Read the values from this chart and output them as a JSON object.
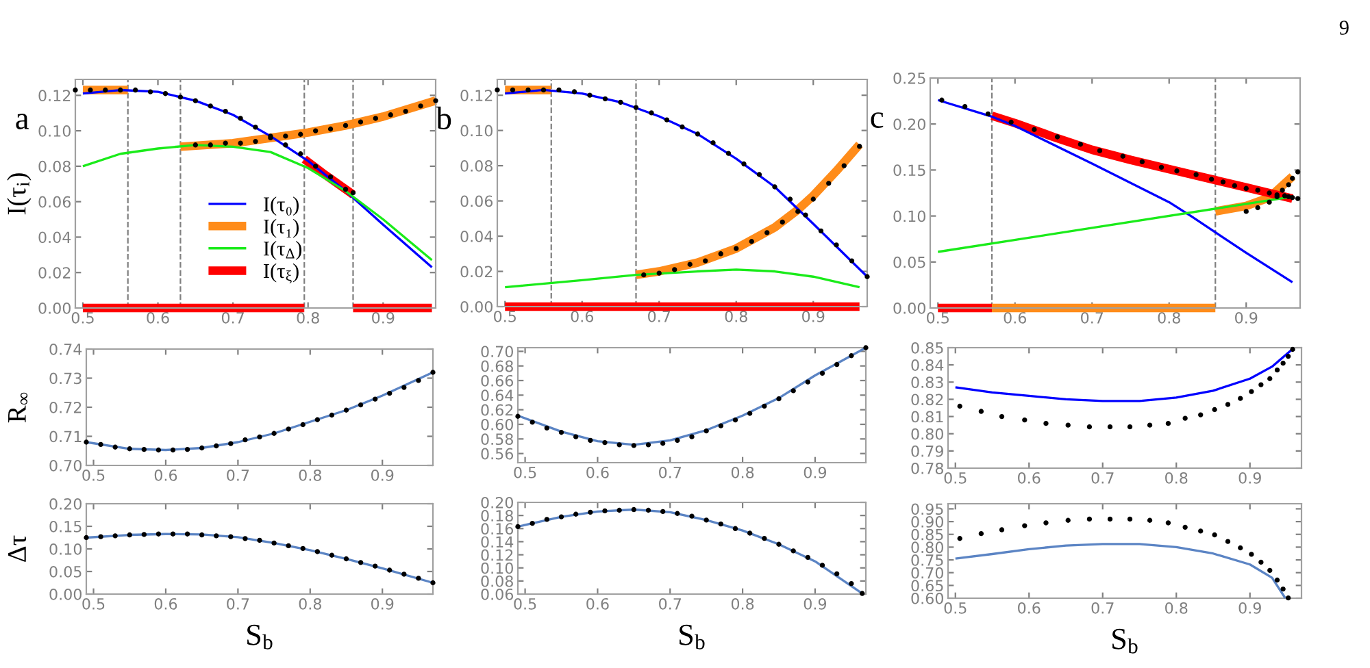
{
  "chart_data": [
    {
      "type": "line",
      "title": "a",
      "ylabel": "I(τ$_{i}$)",
      "legend": "bottom",
      "xlim": [
        0.49,
        0.97
      ],
      "xticks": [
        0.5,
        0.6,
        0.7,
        0.8,
        0.9
      ],
      "ylim": [
        0,
        0.129
      ],
      "yticks": [
        {
          "value": 0,
          "label": "0.00"
        },
        {
          "value": 0.02,
          "label": "0.02"
        },
        {
          "value": 0.04,
          "label": "0.04"
        },
        {
          "value": 0.06,
          "label": "0.06"
        },
        {
          "value": 0.08,
          "label": "0.08"
        },
        {
          "value": 0.1,
          "label": "0.10"
        },
        {
          "value": 0.12,
          "label": "0.12"
        }
      ],
      "ref_lines": [
        {
          "axis": "x",
          "value": 0.56,
          "color": "#808080",
          "line_style": "dashed"
        },
        {
          "axis": "x",
          "value": 0.63,
          "color": "#808080",
          "line_style": "dashed"
        },
        {
          "axis": "x",
          "value": 0.795,
          "color": "#808080",
          "line_style": "dashed"
        },
        {
          "axis": "x",
          "value": 0.86,
          "color": "#808080",
          "line_style": "dashed"
        }
      ],
      "series": [
        {
          "name": "I(τ₀)",
          "color": "#0000ff",
          "x": [
            0.5,
            0.55,
            0.6,
            0.65,
            0.7,
            0.75,
            0.8,
            0.85,
            0.9,
            0.965
          ],
          "values": [
            0.121,
            0.123,
            0.122,
            0.117,
            0.109,
            0.097,
            0.083,
            0.066,
            0.047,
            0.023
          ]
        },
        {
          "name": "I(τ₁)",
          "color": "#ff8c1a",
          "x": [
            0.63,
            0.7,
            0.75,
            0.8,
            0.85,
            0.9,
            0.97
          ],
          "values": [
            0.091,
            0.093,
            0.096,
            0.099,
            0.103,
            0.108,
            0.117
          ]
        },
        {
          "name": "I(τ$_{Δ}$)",
          "color": "#1aeb1a",
          "x": [
            0.5,
            0.55,
            0.6,
            0.65,
            0.7,
            0.75,
            0.8,
            0.85,
            0.9,
            0.965
          ],
          "values": [
            0.08,
            0.087,
            0.09,
            0.092,
            0.091,
            0.088,
            0.079,
            0.066,
            0.05,
            0.027
          ]
        },
        {
          "name": "I(τ$_{ξ}$)",
          "color": "#ff0000",
          "x": [
            0.795,
            0.82,
            0.86
          ],
          "values": [
            0.084,
            0.076,
            0.064
          ]
        },
        {
          "color": "#ff8c1a",
          "x": [
            0.5,
            0.56
          ],
          "values": [
            0.123,
            0.123
          ]
        },
        {
          "color": "#ff0000",
          "x": [
            0.5,
            0.795
          ],
          "values": [
            0,
            0
          ]
        },
        {
          "color": "#ff0000",
          "x": [
            0.86,
            0.965
          ],
          "values": [
            0,
            0
          ]
        },
        {
          "type": "scatter",
          "marker": "circle",
          "color": "#000000",
          "x": [
            0.49,
            0.51,
            0.53,
            0.55,
            0.57,
            0.59,
            0.61,
            0.63,
            0.65,
            0.67,
            0.69,
            0.71,
            0.73,
            0.75,
            0.77,
            0.79,
            0.81,
            0.83,
            0.85,
            0.86,
            0.65,
            0.67,
            0.69,
            0.71,
            0.73,
            0.75,
            0.77,
            0.79,
            0.81,
            0.83,
            0.85,
            0.87,
            0.89,
            0.91,
            0.93,
            0.95,
            0.97
          ],
          "values": [
            0.123,
            0.123,
            0.123,
            0.123,
            0.123,
            0.122,
            0.121,
            0.119,
            0.117,
            0.114,
            0.111,
            0.107,
            0.102,
            0.097,
            0.092,
            0.087,
            0.08,
            0.074,
            0.067,
            0.065,
            0.092,
            0.092,
            0.093,
            0.093,
            0.094,
            0.096,
            0.097,
            0.098,
            0.1,
            0.101,
            0.103,
            0.105,
            0.107,
            0.109,
            0.111,
            0.114,
            0.117
          ]
        }
      ]
    },
    {
      "type": "line",
      "title": "b",
      "xlim": [
        0.49,
        0.97
      ],
      "xticks": [
        0.5,
        0.6,
        0.7,
        0.8,
        0.9
      ],
      "ylim": [
        0,
        0.129
      ],
      "yticks": [
        {
          "value": 0,
          "label": "0.00"
        },
        {
          "value": 0.02,
          "label": "0.02"
        },
        {
          "value": 0.04,
          "label": "0.04"
        },
        {
          "value": 0.06,
          "label": "0.06"
        },
        {
          "value": 0.08,
          "label": "0.08"
        },
        {
          "value": 0.1,
          "label": "0.10"
        },
        {
          "value": 0.12,
          "label": "0.12"
        }
      ],
      "ref_lines": [
        {
          "axis": "x",
          "value": 0.56,
          "color": "#808080",
          "line_style": "dashed"
        },
        {
          "axis": "x",
          "value": 0.67,
          "color": "#808080",
          "line_style": "dashed"
        }
      ],
      "series": [
        {
          "color": "#0000ff",
          "x": [
            0.5,
            0.55,
            0.6,
            0.65,
            0.7,
            0.75,
            0.8,
            0.85,
            0.9,
            0.97
          ],
          "values": [
            0.121,
            0.123,
            0.121,
            0.116,
            0.108,
            0.098,
            0.084,
            0.068,
            0.047,
            0.017
          ]
        },
        {
          "color": "#ff8c1a",
          "x": [
            0.67,
            0.7,
            0.75,
            0.8,
            0.85,
            0.88,
            0.9,
            0.93,
            0.96
          ],
          "values": [
            0.018,
            0.02,
            0.025,
            0.033,
            0.045,
            0.055,
            0.063,
            0.077,
            0.092
          ]
        },
        {
          "color": "#1aeb1a",
          "x": [
            0.5,
            0.6,
            0.67,
            0.75,
            0.8,
            0.85,
            0.9,
            0.96
          ],
          "values": [
            0.011,
            0.015,
            0.018,
            0.02,
            0.021,
            0.02,
            0.017,
            0.011
          ]
        },
        {
          "color": "#ff0000",
          "x": [
            0.5,
            0.96
          ],
          "values": [
            0,
            0
          ]
        },
        {
          "color": "#ff8c1a",
          "x": [
            0.5,
            0.56
          ],
          "values": [
            0.123,
            0.123
          ]
        },
        {
          "type": "scatter",
          "marker": "circle",
          "color": "#000000",
          "x": [
            0.49,
            0.51,
            0.53,
            0.55,
            0.57,
            0.59,
            0.61,
            0.63,
            0.65,
            0.67,
            0.69,
            0.71,
            0.73,
            0.75,
            0.77,
            0.79,
            0.81,
            0.83,
            0.85,
            0.87,
            0.89,
            0.91,
            0.93,
            0.95,
            0.97,
            0.68,
            0.7,
            0.72,
            0.74,
            0.76,
            0.78,
            0.8,
            0.82,
            0.84,
            0.86,
            0.88,
            0.9,
            0.92,
            0.94,
            0.96
          ],
          "values": [
            0.123,
            0.123,
            0.123,
            0.123,
            0.123,
            0.122,
            0.12,
            0.118,
            0.116,
            0.113,
            0.11,
            0.106,
            0.102,
            0.098,
            0.093,
            0.087,
            0.081,
            0.075,
            0.068,
            0.061,
            0.052,
            0.043,
            0.035,
            0.026,
            0.017,
            0.018,
            0.019,
            0.021,
            0.024,
            0.026,
            0.03,
            0.033,
            0.037,
            0.042,
            0.048,
            0.054,
            0.061,
            0.07,
            0.08,
            0.091
          ]
        }
      ]
    },
    {
      "type": "line",
      "title": "c",
      "annotations": [
        "9"
      ],
      "xlim": [
        0.49,
        0.97
      ],
      "xticks": [
        0.5,
        0.6,
        0.7,
        0.8,
        0.9
      ],
      "ylim": [
        0,
        0.25
      ],
      "yticks": [
        {
          "value": 0,
          "label": "0.00"
        },
        {
          "value": 0.05,
          "label": "0.05"
        },
        {
          "value": 0.1,
          "label": "0.10"
        },
        {
          "value": 0.15,
          "label": "0.15"
        },
        {
          "value": 0.2,
          "label": "0.20"
        },
        {
          "value": 0.25,
          "label": "0.25"
        }
      ],
      "ref_lines": [
        {
          "axis": "x",
          "value": 0.57,
          "color": "#808080",
          "line_style": "dashed"
        },
        {
          "axis": "x",
          "value": 0.86,
          "color": "#808080",
          "line_style": "dashed"
        }
      ],
      "series": [
        {
          "color": "#0000ff",
          "x": [
            0.5,
            0.57,
            0.6,
            0.7,
            0.8,
            0.83,
            0.9,
            0.96
          ],
          "values": [
            0.226,
            0.208,
            0.198,
            0.157,
            0.115,
            0.099,
            0.06,
            0.028
          ]
        },
        {
          "color": "#ff8c1a",
          "x": [
            0.86,
            0.9,
            0.93,
            0.96
          ],
          "values": [
            0.105,
            0.111,
            0.12,
            0.143
          ]
        },
        {
          "color": "#1aeb1a",
          "x": [
            0.5,
            0.96
          ],
          "values": [
            0.061,
            0.121
          ]
        },
        {
          "color": "#ff0000",
          "x": [
            0.57,
            0.6,
            0.65,
            0.7,
            0.75,
            0.8,
            0.86,
            0.9,
            0.93,
            0.96
          ],
          "values": [
            0.209,
            0.201,
            0.186,
            0.172,
            0.161,
            0.151,
            0.139,
            0.131,
            0.125,
            0.119
          ]
        },
        {
          "color": "#ff0000",
          "x": [
            0.5,
            0.57
          ],
          "values": [
            0,
            0
          ]
        },
        {
          "color": "#ff8c1a",
          "x": [
            0.57,
            0.86
          ],
          "values": [
            0,
            0
          ]
        },
        {
          "type": "scatter",
          "marker": "circle",
          "color": "#000000",
          "x": [
            0.505,
            0.535,
            0.565,
            0.595,
            0.625,
            0.655,
            0.685,
            0.71,
            0.74,
            0.765,
            0.79,
            0.81,
            0.835,
            0.855,
            0.87,
            0.885,
            0.9,
            0.915,
            0.93,
            0.94,
            0.95,
            0.955,
            0.96,
            0.967,
            0.9,
            0.915,
            0.93,
            0.94,
            0.947,
            0.955,
            0.96,
            0.967
          ],
          "values": [
            0.226,
            0.219,
            0.211,
            0.202,
            0.194,
            0.186,
            0.178,
            0.171,
            0.165,
            0.159,
            0.153,
            0.149,
            0.145,
            0.14,
            0.137,
            0.133,
            0.13,
            0.128,
            0.125,
            0.123,
            0.122,
            0.121,
            0.12,
            0.119,
            0.105,
            0.109,
            0.115,
            0.121,
            0.128,
            0.134,
            0.141,
            0.148
          ]
        }
      ]
    },
    {
      "type": "line",
      "ylabel": "R$_{∞}$",
      "xlim": [
        0.49,
        0.97
      ],
      "xticks": [
        0.5,
        0.6,
        0.7,
        0.8,
        0.9
      ],
      "ylim": [
        0.7,
        0.74
      ],
      "yticks": [
        {
          "value": 0.7,
          "label": "0.70"
        },
        {
          "value": 0.71,
          "label": "0.71"
        },
        {
          "value": 0.72,
          "label": "0.72"
        },
        {
          "value": 0.73,
          "label": "0.73"
        },
        {
          "value": 0.74,
          "label": "0.74"
        }
      ],
      "series": [
        {
          "color": "#5b84c4",
          "x": [
            0.49,
            0.55,
            0.6,
            0.65,
            0.7,
            0.75,
            0.8,
            0.85,
            0.9,
            0.97
          ],
          "values": [
            0.708,
            0.7057,
            0.7053,
            0.706,
            0.708,
            0.711,
            0.715,
            0.719,
            0.724,
            0.732
          ]
        },
        {
          "type": "scatter",
          "marker": "circle",
          "color": "#000000",
          "x": [
            0.49,
            0.51,
            0.53,
            0.55,
            0.57,
            0.59,
            0.61,
            0.63,
            0.65,
            0.67,
            0.69,
            0.71,
            0.73,
            0.75,
            0.77,
            0.79,
            0.81,
            0.83,
            0.85,
            0.87,
            0.89,
            0.91,
            0.93,
            0.95,
            0.97
          ],
          "values": [
            0.708,
            0.7072,
            0.7063,
            0.7057,
            0.7055,
            0.7053,
            0.7053,
            0.7055,
            0.706,
            0.7067,
            0.7075,
            0.7088,
            0.7098,
            0.711,
            0.7125,
            0.714,
            0.7157,
            0.7173,
            0.719,
            0.7208,
            0.7228,
            0.7248,
            0.7268,
            0.7292,
            0.732
          ]
        }
      ]
    },
    {
      "type": "line",
      "xlim": [
        0.49,
        0.97
      ],
      "xticks": [
        0.5,
        0.6,
        0.7,
        0.8,
        0.9
      ],
      "ylim": [
        0.5475,
        0.705
      ],
      "yticks": [
        {
          "value": 0.56,
          "label": "0.56"
        },
        {
          "value": 0.58,
          "label": "0.58"
        },
        {
          "value": 0.6,
          "label": "0.60"
        },
        {
          "value": 0.62,
          "label": "0.62"
        },
        {
          "value": 0.64,
          "label": "0.64"
        },
        {
          "value": 0.66,
          "label": "0.66"
        },
        {
          "value": 0.68,
          "label": "0.68"
        },
        {
          "value": 0.7,
          "label": "0.70"
        }
      ],
      "series": [
        {
          "color": "#5b84c4",
          "x": [
            0.49,
            0.55,
            0.6,
            0.65,
            0.7,
            0.75,
            0.8,
            0.85,
            0.9,
            0.97
          ],
          "values": [
            0.612,
            0.59,
            0.577,
            0.572,
            0.578,
            0.592,
            0.612,
            0.636,
            0.667,
            0.705
          ]
        },
        {
          "type": "scatter",
          "marker": "circle",
          "color": "#000000",
          "x": [
            0.49,
            0.51,
            0.53,
            0.55,
            0.57,
            0.59,
            0.61,
            0.63,
            0.65,
            0.67,
            0.69,
            0.71,
            0.73,
            0.75,
            0.77,
            0.79,
            0.81,
            0.83,
            0.85,
            0.87,
            0.89,
            0.91,
            0.93,
            0.95,
            0.97
          ],
          "values": [
            0.611,
            0.603,
            0.595,
            0.589,
            0.583,
            0.578,
            0.575,
            0.572,
            0.571,
            0.572,
            0.574,
            0.578,
            0.583,
            0.591,
            0.598,
            0.606,
            0.615,
            0.625,
            0.635,
            0.646,
            0.658,
            0.67,
            0.682,
            0.694,
            0.705
          ]
        }
      ]
    },
    {
      "type": "line",
      "xlim": [
        0.49,
        0.97
      ],
      "xticks": [
        0.5,
        0.6,
        0.7,
        0.8,
        0.9
      ],
      "ylim": [
        0.78,
        0.85
      ],
      "yticks": [
        {
          "value": 0.78,
          "label": "0.78"
        },
        {
          "value": 0.79,
          "label": "0.79"
        },
        {
          "value": 0.8,
          "label": "0.80"
        },
        {
          "value": 0.81,
          "label": "0.81"
        },
        {
          "value": 0.82,
          "label": "0.82"
        },
        {
          "value": 0.83,
          "label": "0.83"
        },
        {
          "value": 0.84,
          "label": "0.84"
        },
        {
          "value": 0.85,
          "label": "0.85"
        }
      ],
      "series": [
        {
          "color": "#0000ff",
          "x": [
            0.5,
            0.55,
            0.6,
            0.65,
            0.7,
            0.75,
            0.8,
            0.85,
            0.9,
            0.93,
            0.96
          ],
          "values": [
            0.827,
            0.824,
            0.822,
            0.82,
            0.819,
            0.819,
            0.821,
            0.825,
            0.832,
            0.839,
            0.85
          ]
        },
        {
          "type": "scatter",
          "marker": "circle",
          "color": "#000000",
          "x": [
            0.506,
            0.535,
            0.563,
            0.594,
            0.623,
            0.653,
            0.682,
            0.71,
            0.737,
            0.764,
            0.789,
            0.812,
            0.833,
            0.852,
            0.87,
            0.887,
            0.902,
            0.915,
            0.927,
            0.937,
            0.945,
            0.952,
            0.958
          ],
          "values": [
            0.816,
            0.813,
            0.81,
            0.808,
            0.806,
            0.805,
            0.804,
            0.804,
            0.804,
            0.805,
            0.806,
            0.809,
            0.811,
            0.814,
            0.817,
            0.8205,
            0.8245,
            0.8285,
            0.832,
            0.837,
            0.841,
            0.845,
            0.849
          ]
        }
      ]
    },
    {
      "type": "line",
      "ylabel": "Δτ",
      "xlabel": "S$_{b}$",
      "xlim": [
        0.49,
        0.97
      ],
      "xticks": [
        0.5,
        0.6,
        0.7,
        0.8,
        0.9
      ],
      "ylim": [
        0,
        0.2
      ],
      "yticks": [
        {
          "value": 0,
          "label": "0.00"
        },
        {
          "value": 0.05,
          "label": "0.05"
        },
        {
          "value": 0.1,
          "label": "0.10"
        },
        {
          "value": 0.15,
          "label": "0.15"
        },
        {
          "value": 0.2,
          "label": "0.20"
        }
      ],
      "series": [
        {
          "color": "#5b84c4",
          "x": [
            0.49,
            0.55,
            0.6,
            0.65,
            0.7,
            0.75,
            0.8,
            0.85,
            0.9,
            0.97
          ],
          "values": [
            0.125,
            0.131,
            0.133,
            0.132,
            0.126,
            0.113,
            0.097,
            0.078,
            0.057,
            0.025
          ]
        },
        {
          "type": "scatter",
          "marker": "circle",
          "color": "#000000",
          "x": [
            0.49,
            0.51,
            0.53,
            0.55,
            0.57,
            0.59,
            0.61,
            0.63,
            0.65,
            0.67,
            0.69,
            0.71,
            0.73,
            0.75,
            0.77,
            0.79,
            0.81,
            0.83,
            0.85,
            0.87,
            0.89,
            0.91,
            0.93,
            0.95,
            0.97
          ],
          "values": [
            0.125,
            0.127,
            0.129,
            0.131,
            0.132,
            0.133,
            0.133,
            0.133,
            0.131,
            0.129,
            0.127,
            0.123,
            0.119,
            0.113,
            0.107,
            0.101,
            0.094,
            0.086,
            0.078,
            0.07,
            0.062,
            0.053,
            0.044,
            0.035,
            0.025
          ]
        }
      ]
    },
    {
      "type": "line",
      "xlabel": "S$_{b}$",
      "xlim": [
        0.49,
        0.97
      ],
      "xticks": [
        0.5,
        0.6,
        0.7,
        0.8,
        0.9
      ],
      "ylim": [
        0.06,
        0.2
      ],
      "yticks": [
        {
          "value": 0.06,
          "label": "0.06"
        },
        {
          "value": 0.08,
          "label": "0.08"
        },
        {
          "value": 0.1,
          "label": "0.10"
        },
        {
          "value": 0.12,
          "label": "0.12"
        },
        {
          "value": 0.14,
          "label": "0.14"
        },
        {
          "value": 0.16,
          "label": "0.16"
        },
        {
          "value": 0.18,
          "label": "0.18"
        },
        {
          "value": 0.2,
          "label": "0.20"
        }
      ],
      "series": [
        {
          "color": "#5b84c4",
          "x": [
            0.49,
            0.55,
            0.6,
            0.65,
            0.7,
            0.75,
            0.8,
            0.85,
            0.9,
            0.965
          ],
          "values": [
            0.163,
            0.178,
            0.186,
            0.189,
            0.185,
            0.173,
            0.157,
            0.136,
            0.11,
            0.061
          ]
        },
        {
          "type": "scatter",
          "marker": "circle",
          "color": "#000000",
          "x": [
            0.49,
            0.51,
            0.53,
            0.55,
            0.57,
            0.59,
            0.61,
            0.63,
            0.65,
            0.67,
            0.69,
            0.71,
            0.73,
            0.75,
            0.77,
            0.79,
            0.81,
            0.83,
            0.85,
            0.87,
            0.89,
            0.91,
            0.93,
            0.95,
            0.965
          ],
          "values": [
            0.163,
            0.168,
            0.174,
            0.178,
            0.182,
            0.185,
            0.187,
            0.188,
            0.189,
            0.188,
            0.186,
            0.183,
            0.179,
            0.173,
            0.167,
            0.16,
            0.153,
            0.145,
            0.136,
            0.126,
            0.116,
            0.104,
            0.091,
            0.076,
            0.061
          ]
        }
      ]
    },
    {
      "type": "line",
      "xlabel": "S$_{b}$",
      "xlim": [
        0.49,
        0.97
      ],
      "xticks": [
        0.5,
        0.6,
        0.7,
        0.8,
        0.9
      ],
      "ylim": [
        0.6,
        0.97
      ],
      "yticks": [
        {
          "value": 0.6,
          "label": "0.60"
        },
        {
          "value": 0.65,
          "label": "0.65"
        },
        {
          "value": 0.7,
          "label": "0.70"
        },
        {
          "value": 0.75,
          "label": "0.75"
        },
        {
          "value": 0.8,
          "label": "0.80"
        },
        {
          "value": 0.85,
          "label": "0.85"
        },
        {
          "value": 0.9,
          "label": "0.90"
        },
        {
          "value": 0.95,
          "label": "0.95"
        }
      ],
      "series": [
        {
          "color": "#5b84c4",
          "x": [
            0.5,
            0.55,
            0.6,
            0.65,
            0.7,
            0.75,
            0.8,
            0.85,
            0.9,
            0.93,
            0.948
          ],
          "values": [
            0.755,
            0.773,
            0.792,
            0.806,
            0.812,
            0.812,
            0.8,
            0.775,
            0.732,
            0.68,
            0.6
          ]
        },
        {
          "type": "scatter",
          "marker": "circle",
          "color": "#000000",
          "x": [
            0.506,
            0.535,
            0.563,
            0.594,
            0.623,
            0.653,
            0.682,
            0.71,
            0.737,
            0.764,
            0.789,
            0.812,
            0.833,
            0.852,
            0.87,
            0.887,
            0.902,
            0.915,
            0.927,
            0.937,
            0.945,
            0.952
          ],
          "values": [
            0.834,
            0.853,
            0.868,
            0.884,
            0.895,
            0.905,
            0.91,
            0.91,
            0.91,
            0.905,
            0.895,
            0.878,
            0.863,
            0.848,
            0.822,
            0.797,
            0.772,
            0.741,
            0.709,
            0.671,
            0.636,
            0.601
          ]
        }
      ]
    }
  ]
}
